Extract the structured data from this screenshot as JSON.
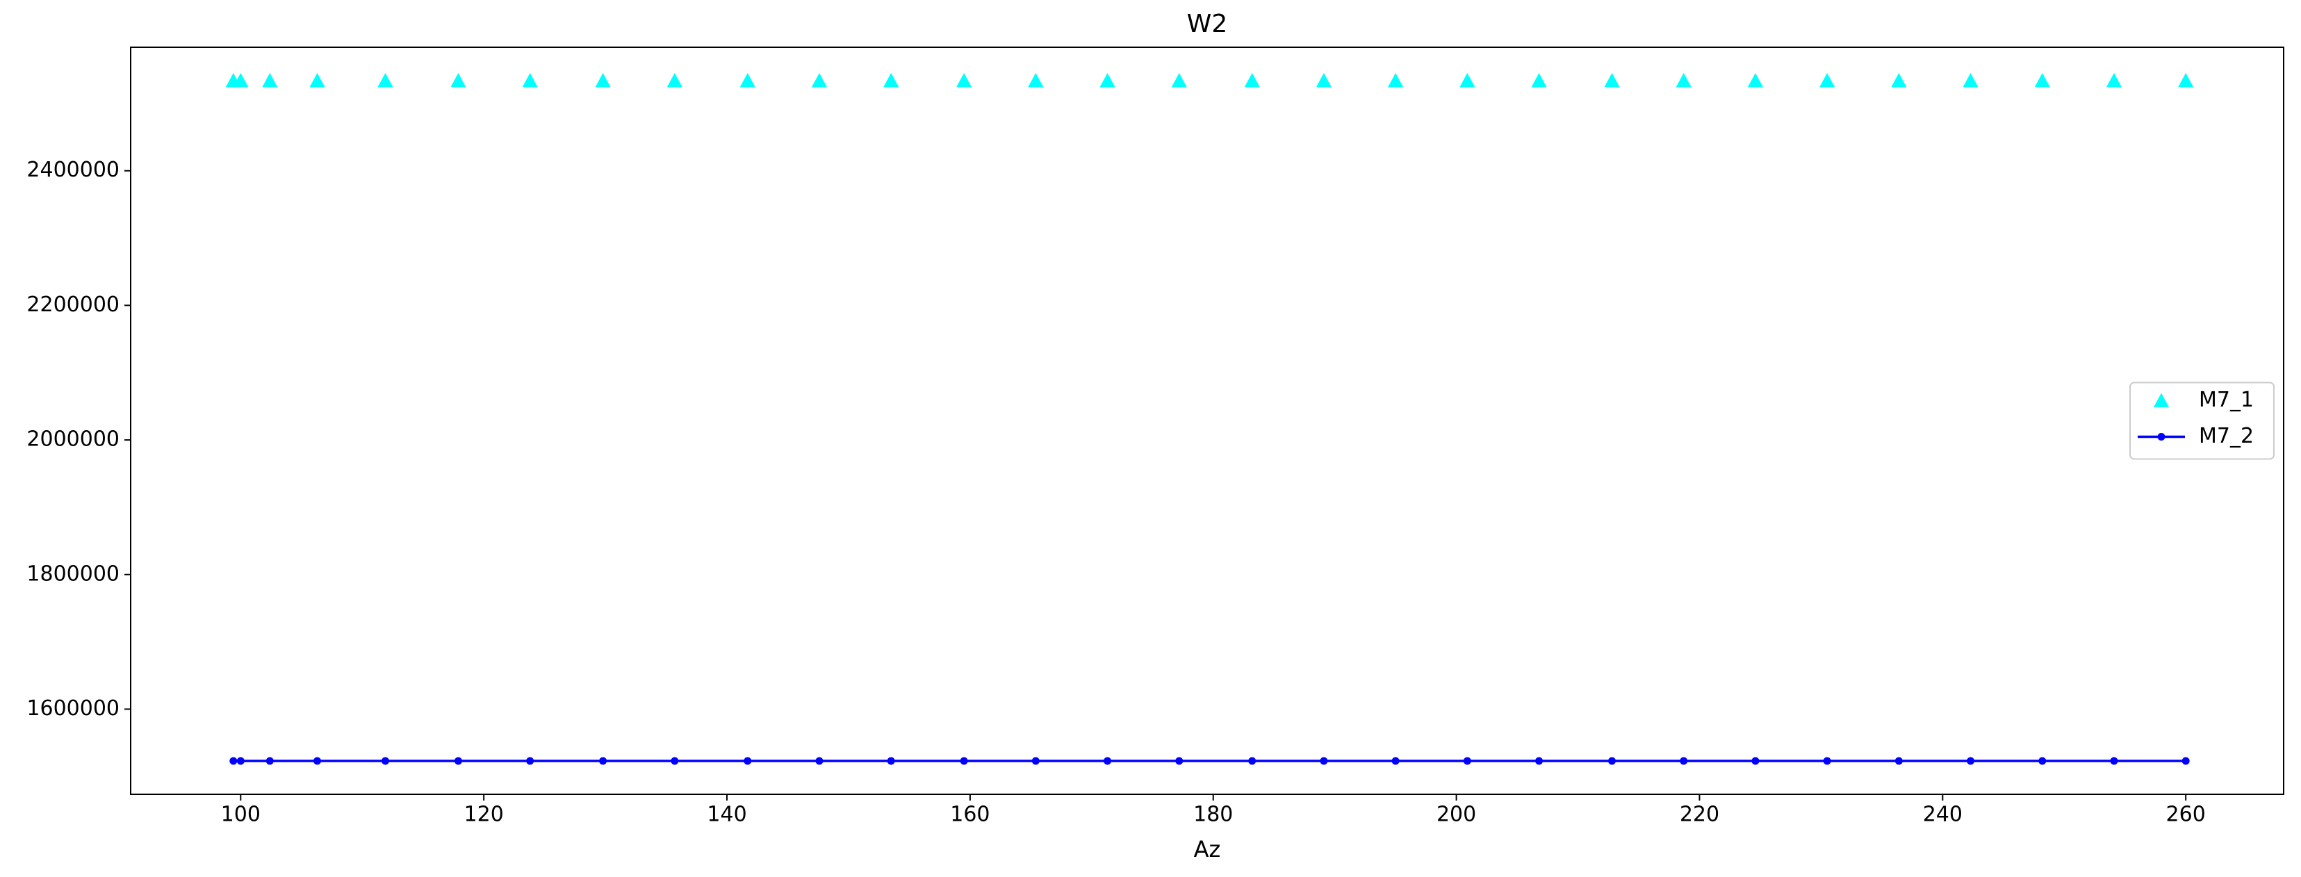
{
  "chart_data": {
    "type": "line",
    "title": "W2",
    "x_label": "Az",
    "x": [
      99.4,
      100,
      102.4,
      106.3,
      111.9,
      117.9,
      123.8,
      129.8,
      135.7,
      141.7,
      147.6,
      153.5,
      159.5,
      165.4,
      171.3,
      177.2,
      183.2,
      189.1,
      195.0,
      200.9,
      206.8,
      212.8,
      218.7,
      224.6,
      230.5,
      236.4,
      242.3,
      248.2,
      254.1,
      260.0
    ],
    "series": [
      {
        "name": "M7_1",
        "color": "#00ffff",
        "marker": "triangle",
        "linestyle": "none",
        "values": [
          2534000,
          2534000,
          2534000,
          2534000,
          2534000,
          2534000,
          2534000,
          2534000,
          2534000,
          2534000,
          2534000,
          2534000,
          2534000,
          2534000,
          2534000,
          2534000,
          2534000,
          2534000,
          2534000,
          2534000,
          2534000,
          2534000,
          2534000,
          2534000,
          2534000,
          2534000,
          2534000,
          2534000,
          2534000,
          2534000
        ]
      },
      {
        "name": "M7_2",
        "color": "#0000ff",
        "marker": "circle",
        "linestyle": "solid",
        "values": [
          1523000,
          1523000,
          1523000,
          1523000,
          1523000,
          1523000,
          1523000,
          1523000,
          1523000,
          1523000,
          1523000,
          1523000,
          1523000,
          1523000,
          1523000,
          1523000,
          1523000,
          1523000,
          1523000,
          1523000,
          1523000,
          1523000,
          1523000,
          1523000,
          1523000,
          1523000,
          1523000,
          1523000,
          1523000,
          1523000
        ]
      }
    ],
    "xlim": [
      90.95,
      268.05
    ],
    "xticks": [
      100,
      120,
      140,
      160,
      180,
      200,
      220,
      240,
      260
    ],
    "ylim": [
      1473450,
      2583550
    ],
    "yticks": [
      1600000,
      1800000,
      2000000,
      2200000,
      2400000
    ],
    "grid": false,
    "legend": "center right"
  }
}
